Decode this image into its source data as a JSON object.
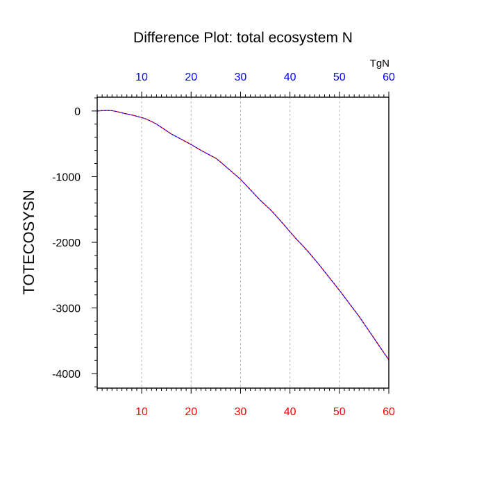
{
  "chart_data": {
    "type": "line",
    "title": "Difference Plot: total ecosystem N",
    "units_label": "TgN",
    "ylabel": "TOTECOSYSN",
    "xlabel": "",
    "xlim": [
      1,
      60
    ],
    "ylim": [
      -4220,
      210
    ],
    "x_ticks": [
      10,
      20,
      30,
      40,
      50,
      60
    ],
    "y_ticks": [
      0,
      -1000,
      -2000,
      -3000,
      -4000
    ],
    "top_tick_color": "#0000ff",
    "bottom_tick_color": "#ff0000",
    "line_colors": [
      "#ff0000",
      "#0000ff"
    ],
    "grid": "vertical dashed at major x ticks",
    "series": [
      {
        "x": [
          1,
          2,
          3,
          4,
          5,
          6,
          7,
          8,
          9,
          10,
          11,
          12,
          13,
          14,
          15,
          16,
          17,
          18,
          19,
          20,
          21,
          22,
          23,
          24,
          25,
          26,
          27,
          28,
          29,
          30,
          31,
          32,
          33,
          34,
          35,
          36,
          37,
          38,
          39,
          40,
          41,
          42,
          43,
          44,
          45,
          46,
          47,
          48,
          49,
          50,
          51,
          52,
          53,
          54,
          55,
          56,
          57,
          58,
          59,
          60
        ],
        "y": [
          0,
          5,
          8,
          5,
          -10,
          -28,
          -45,
          -60,
          -80,
          -100,
          -125,
          -160,
          -200,
          -250,
          -300,
          -350,
          -390,
          -430,
          -470,
          -510,
          -555,
          -600,
          -640,
          -680,
          -720,
          -780,
          -845,
          -910,
          -975,
          -1040,
          -1120,
          -1200,
          -1280,
          -1360,
          -1430,
          -1500,
          -1580,
          -1665,
          -1750,
          -1840,
          -1925,
          -2005,
          -2085,
          -2170,
          -2260,
          -2350,
          -2445,
          -2540,
          -2635,
          -2730,
          -2830,
          -2930,
          -3030,
          -3130,
          -3240,
          -3350,
          -3460,
          -3570,
          -3680,
          -3790
        ]
      }
    ]
  }
}
